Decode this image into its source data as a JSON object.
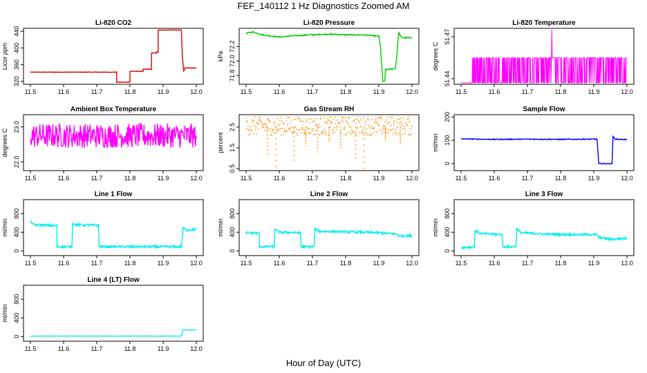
{
  "page": {
    "title": "FEF_140112  1 Hz Diagnostics Zoomed AM",
    "x_axis_title": "Hour of Day (UTC)"
  },
  "chart_data": [
    {
      "type": "line",
      "title": "Li-820 CO2",
      "ylabel": "Licor ppm",
      "color": "#dd0000",
      "xlim": [
        11.5,
        12.0
      ],
      "ylim": [
        313,
        447
      ],
      "xticks": [
        11.5,
        11.6,
        11.7,
        11.8,
        11.9,
        12.0
      ],
      "xtick_labels": [
        "11.5",
        "11.6",
        "11.7",
        "11.8",
        "11.9",
        "12.0"
      ],
      "yticks": [
        320,
        360,
        400,
        440
      ],
      "ytick_labels": [
        "320",
        "360",
        "400",
        "440"
      ],
      "noise": 0.6,
      "series": [
        [
          [
            11.5,
            342
          ],
          [
            11.76,
            342
          ],
          [
            11.76,
            318
          ],
          [
            11.78,
            318
          ],
          [
            11.8,
            318
          ],
          [
            11.8,
            344
          ],
          [
            11.82,
            344
          ],
          [
            11.82,
            344
          ],
          [
            11.84,
            344
          ],
          [
            11.84,
            349
          ],
          [
            11.865,
            349
          ],
          [
            11.865,
            388
          ],
          [
            11.88,
            388
          ],
          [
            11.88,
            390
          ],
          [
            11.885,
            390
          ],
          [
            11.885,
            443
          ],
          [
            11.955,
            443
          ],
          [
            11.958,
            380
          ],
          [
            11.962,
            345
          ],
          [
            11.966,
            352
          ],
          [
            12.0,
            352
          ]
        ]
      ]
    },
    {
      "type": "line",
      "title": "Li-820 Pressure",
      "ylabel": "kPa",
      "color": "#00cc00",
      "xlim": [
        11.5,
        12.0
      ],
      "ylim": [
        71.68,
        72.45
      ],
      "xticks": [
        11.5,
        11.6,
        11.7,
        11.8,
        11.9,
        12.0
      ],
      "xtick_labels": [
        "11.5",
        "11.6",
        "11.7",
        "11.8",
        "11.9",
        "12.0"
      ],
      "yticks": [
        71.8,
        72.0,
        72.2
      ],
      "ytick_labels": [
        "71.8",
        "72.0",
        "72.2"
      ],
      "noise": 0.008,
      "series": [
        [
          [
            11.5,
            72.38
          ],
          [
            11.52,
            72.4
          ],
          [
            11.55,
            72.36
          ],
          [
            11.6,
            72.33
          ],
          [
            11.65,
            72.35
          ],
          [
            11.7,
            72.36
          ],
          [
            11.75,
            72.37
          ],
          [
            11.8,
            72.36
          ],
          [
            11.85,
            72.36
          ],
          [
            11.88,
            72.35
          ],
          [
            11.9,
            72.34
          ],
          [
            11.905,
            72.2
          ],
          [
            11.912,
            71.72
          ],
          [
            11.918,
            71.72
          ],
          [
            11.92,
            71.88
          ],
          [
            11.94,
            71.89
          ],
          [
            11.95,
            71.9
          ],
          [
            11.955,
            72.1
          ],
          [
            11.96,
            72.4
          ],
          [
            11.963,
            72.36
          ],
          [
            11.97,
            72.32
          ],
          [
            12.0,
            72.32
          ]
        ]
      ]
    },
    {
      "type": "line",
      "title": "Li-820 Temperature",
      "ylabel": "degrees C",
      "color": "#ff00ff",
      "xlim": [
        11.5,
        12.0
      ],
      "ylim": [
        51.436,
        51.476
      ],
      "xticks": [
        11.5,
        11.6,
        11.7,
        11.8,
        11.9,
        12.0
      ],
      "xtick_labels": [
        "11.5",
        "11.6",
        "11.7",
        "11.8",
        "11.9",
        "12.0"
      ],
      "yticks": [
        51.44,
        51.47
      ],
      "ytick_labels": [
        "51.44",
        "51.47"
      ],
      "levels": [
        51.437,
        51.455,
        51.475
      ],
      "series": []
    },
    {
      "type": "line",
      "title": "Ambient Box Temperature",
      "ylabel": "degrees C",
      "color": "#ff00ff",
      "xlim": [
        11.5,
        12.0
      ],
      "ylim": [
        21.75,
        23.35
      ],
      "xticks": [
        11.5,
        11.6,
        11.7,
        11.8,
        11.9,
        12.0
      ],
      "xtick_labels": [
        "11.5",
        "11.6",
        "11.7",
        "11.8",
        "11.9",
        "12.0"
      ],
      "yticks": [
        22.0,
        23.0
      ],
      "ytick_labels": [
        "22.0",
        "23.0"
      ],
      "noise": 0.35,
      "series": [
        [
          [
            11.5,
            22.75
          ],
          [
            12.0,
            22.75
          ]
        ]
      ]
    },
    {
      "type": "scatter",
      "title": "Gas Stream RH",
      "ylabel": "percent",
      "color": "#ff8c00",
      "xlim": [
        11.5,
        12.0
      ],
      "ylim": [
        0.4,
        3.1
      ],
      "xticks": [
        11.5,
        11.6,
        11.7,
        11.8,
        11.9,
        12.0
      ],
      "xtick_labels": [
        "11.5",
        "11.6",
        "11.7",
        "11.8",
        "11.9",
        "12.0"
      ],
      "yticks": [
        0.5,
        1.5,
        2.5
      ],
      "ytick_labels": [
        "0.5",
        "1.5",
        "2.5"
      ],
      "noise": 0.45,
      "series": [
        [
          [
            11.5,
            2.55
          ],
          [
            12.0,
            2.55
          ]
        ]
      ],
      "dips": [
        [
          11.565,
          1.2
        ],
        [
          11.59,
          0.6
        ],
        [
          11.645,
          0.9
        ],
        [
          11.68,
          1.6
        ],
        [
          11.715,
          1.3
        ],
        [
          11.75,
          1.8
        ],
        [
          11.785,
          1.5
        ],
        [
          11.83,
          1.0
        ],
        [
          11.855,
          0.5
        ],
        [
          11.92,
          1.9
        ],
        [
          11.965,
          1.7
        ]
      ]
    },
    {
      "type": "line",
      "title": "Sample Flow",
      "ylabel": "ml/min",
      "color": "#0000ff",
      "xlim": [
        11.5,
        12.0
      ],
      "ylim": [
        -30,
        210
      ],
      "xticks": [
        11.5,
        11.6,
        11.7,
        11.8,
        11.9,
        12.0
      ],
      "xtick_labels": [
        "11.5",
        "11.6",
        "11.7",
        "11.8",
        "11.9",
        "12.0"
      ],
      "yticks": [
        0,
        100,
        200
      ],
      "ytick_labels": [
        "0",
        "100",
        "200"
      ],
      "noise": 2,
      "series": [
        [
          [
            11.5,
            106
          ],
          [
            11.6,
            104
          ],
          [
            11.7,
            105
          ],
          [
            11.8,
            104
          ],
          [
            11.89,
            105
          ],
          [
            11.91,
            105
          ],
          [
            11.915,
            0
          ],
          [
            11.955,
            0
          ],
          [
            11.958,
            115
          ],
          [
            11.965,
            105
          ],
          [
            12.0,
            103
          ]
        ]
      ]
    },
    {
      "type": "line",
      "title": "Line 1 Flow",
      "ylabel": "ml/min",
      "color": "#00eeee",
      "xlim": [
        11.5,
        12.0
      ],
      "ylim": [
        -100,
        1100
      ],
      "xticks": [
        11.5,
        11.6,
        11.7,
        11.8,
        11.9,
        12.0
      ],
      "xtick_labels": [
        "11.5",
        "11.6",
        "11.7",
        "11.8",
        "11.9",
        "12.0"
      ],
      "yticks": [
        0,
        400,
        800
      ],
      "ytick_labels": [
        "0",
        "400",
        "800"
      ],
      "noise": 25,
      "series": [
        [
          [
            11.5,
            630
          ],
          [
            11.51,
            560
          ],
          [
            11.58,
            540
          ],
          [
            11.58,
            90
          ],
          [
            11.625,
            90
          ],
          [
            11.627,
            590
          ],
          [
            11.64,
            560
          ],
          [
            11.705,
            550
          ],
          [
            11.707,
            90
          ],
          [
            11.955,
            90
          ],
          [
            11.96,
            490
          ],
          [
            11.97,
            450
          ],
          [
            12.0,
            460
          ]
        ]
      ]
    },
    {
      "type": "line",
      "title": "Line 2 Flow",
      "ylabel": "ml/min",
      "color": "#00eeee",
      "xlim": [
        11.5,
        12.0
      ],
      "ylim": [
        -100,
        1100
      ],
      "xticks": [
        11.5,
        11.6,
        11.7,
        11.8,
        11.9,
        12.0
      ],
      "xtick_labels": [
        "11.5",
        "11.6",
        "11.7",
        "11.8",
        "11.9",
        "12.0"
      ],
      "yticks": [
        0,
        400,
        800
      ],
      "ytick_labels": [
        "0",
        "400",
        "800"
      ],
      "noise": 25,
      "series": [
        [
          [
            11.5,
            390
          ],
          [
            11.54,
            380
          ],
          [
            11.54,
            90
          ],
          [
            11.585,
            90
          ],
          [
            11.587,
            470
          ],
          [
            11.6,
            400
          ],
          [
            11.665,
            390
          ],
          [
            11.665,
            90
          ],
          [
            11.705,
            90
          ],
          [
            11.708,
            480
          ],
          [
            11.72,
            420
          ],
          [
            11.8,
            410
          ],
          [
            11.9,
            390
          ],
          [
            11.955,
            360
          ],
          [
            11.96,
            320
          ],
          [
            12.0,
            330
          ]
        ]
      ]
    },
    {
      "type": "line",
      "title": "Line 3 Flow",
      "ylabel": "ml/min",
      "color": "#00eeee",
      "xlim": [
        11.5,
        12.0
      ],
      "ylim": [
        -100,
        1100
      ],
      "xticks": [
        11.5,
        11.6,
        11.7,
        11.8,
        11.9,
        12.0
      ],
      "xtick_labels": [
        "11.5",
        "11.6",
        "11.7",
        "11.8",
        "11.9",
        "12.0"
      ],
      "yticks": [
        0,
        400,
        800
      ],
      "ytick_labels": [
        "0",
        "400",
        "800"
      ],
      "noise": 25,
      "series": [
        [
          [
            11.5,
            70
          ],
          [
            11.54,
            90
          ],
          [
            11.542,
            430
          ],
          [
            11.56,
            370
          ],
          [
            11.625,
            350
          ],
          [
            11.625,
            90
          ],
          [
            11.665,
            90
          ],
          [
            11.668,
            480
          ],
          [
            11.68,
            390
          ],
          [
            11.75,
            360
          ],
          [
            11.85,
            350
          ],
          [
            11.91,
            350
          ],
          [
            11.915,
            290
          ],
          [
            11.95,
            250
          ],
          [
            12.0,
            270
          ]
        ]
      ]
    },
    {
      "type": "line",
      "title": "Line 4 (LT) Flow",
      "ylabel": "ml/min",
      "color": "#00eeee",
      "xlim": [
        11.5,
        12.0
      ],
      "ylim": [
        -100,
        1100
      ],
      "xticks": [
        11.5,
        11.6,
        11.7,
        11.8,
        11.9,
        12.0
      ],
      "xtick_labels": [
        "11.5",
        "11.6",
        "11.7",
        "11.8",
        "11.9",
        "12.0"
      ],
      "yticks": [
        0,
        400,
        800
      ],
      "ytick_labels": [
        "0",
        "400",
        "800"
      ],
      "noise": 3,
      "series": [
        [
          [
            11.5,
            10
          ],
          [
            11.955,
            10
          ],
          [
            11.96,
            150
          ],
          [
            11.97,
            140
          ],
          [
            12.0,
            140
          ]
        ]
      ]
    }
  ]
}
